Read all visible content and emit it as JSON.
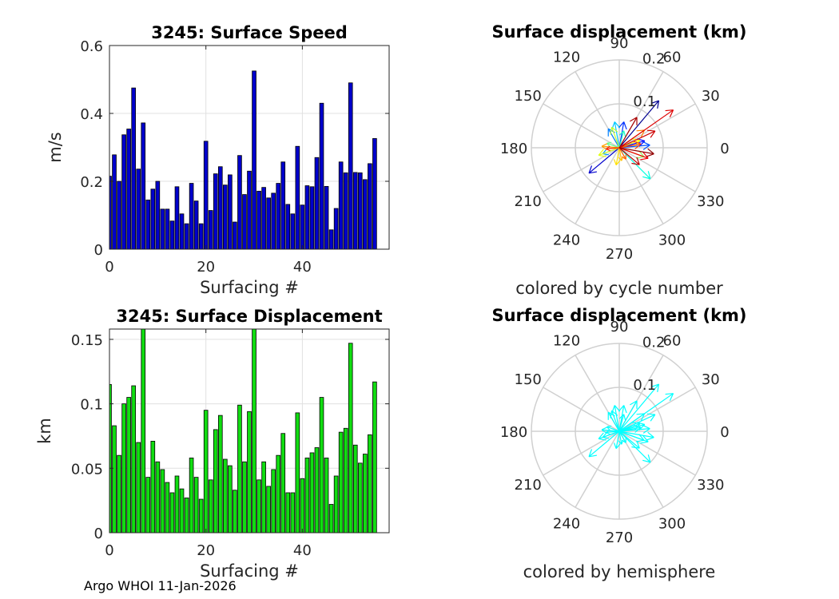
{
  "footer": "Argo WHOI 11-Jan-2026",
  "chart_data": [
    {
      "type": "bar",
      "title": "3245: Surface Speed",
      "xlabel": "Surfacing #",
      "ylabel": "m/s",
      "color": "#0000cc",
      "xlim": [
        0,
        58
      ],
      "ylim": [
        0,
        0.6
      ],
      "xticks": [
        0,
        20,
        40
      ],
      "yticks": [
        0,
        0.2,
        0.4,
        0.6
      ],
      "yticklabels": [
        "0",
        "0.2",
        "0.4",
        "0.6"
      ],
      "grid": true,
      "x": [
        0,
        1,
        2,
        3,
        4,
        5,
        6,
        7,
        8,
        9,
        10,
        11,
        12,
        13,
        14,
        15,
        16,
        17,
        18,
        19,
        20,
        21,
        22,
        23,
        24,
        25,
        26,
        27,
        28,
        29,
        30,
        31,
        32,
        33,
        34,
        35,
        36,
        37,
        38,
        39,
        40,
        41,
        42,
        43,
        44,
        45,
        46,
        47,
        48,
        49,
        50,
        51,
        52,
        53,
        54,
        55,
        56
      ],
      "values": [
        0.215,
        0.278,
        0.2,
        0.337,
        0.354,
        0.475,
        0.236,
        0.372,
        0.145,
        0.177,
        0.2,
        0.118,
        0.118,
        0.083,
        0.184,
        0.104,
        0.075,
        0.194,
        0.142,
        0.075,
        0.318,
        0.114,
        0.222,
        0.243,
        0.189,
        0.219,
        0.08,
        0.276,
        0.161,
        0.23,
        0.525,
        0.171,
        0.182,
        0.151,
        0.165,
        0.194,
        0.257,
        0.132,
        0.104,
        0.303,
        0.13,
        0.187,
        0.184,
        0.27,
        0.43,
        0.185,
        0.057,
        0.12,
        0.257,
        0.225,
        0.49,
        0.226,
        0.225,
        0.205,
        0.252,
        0.326,
        0.0
      ]
    },
    {
      "type": "bar",
      "title": "3245: Surface Displacement",
      "xlabel": "Surfacing #",
      "ylabel": "km",
      "color": "#11dd11",
      "xlim": [
        0,
        58
      ],
      "ylim": [
        0,
        0.158
      ],
      "xticks": [
        0,
        20,
        40
      ],
      "yticks": [
        0,
        0.05,
        0.1,
        0.15
      ],
      "yticklabels": [
        "0",
        "0.05",
        "0.1",
        "0.15"
      ],
      "grid": true,
      "x": [
        0,
        1,
        2,
        3,
        4,
        5,
        6,
        7,
        8,
        9,
        10,
        11,
        12,
        13,
        14,
        15,
        16,
        17,
        18,
        19,
        20,
        21,
        22,
        23,
        24,
        25,
        26,
        27,
        28,
        29,
        30,
        31,
        32,
        33,
        34,
        35,
        36,
        37,
        38,
        39,
        40,
        41,
        42,
        43,
        44,
        45,
        46,
        47,
        48,
        49,
        50,
        51,
        52,
        53,
        54,
        55,
        56
      ],
      "values": [
        0.115,
        0.083,
        0.06,
        0.1,
        0.105,
        0.114,
        0.07,
        0.158,
        0.043,
        0.071,
        0.055,
        0.049,
        0.039,
        0.031,
        0.044,
        0.034,
        0.027,
        0.058,
        0.043,
        0.026,
        0.095,
        0.041,
        0.08,
        0.091,
        0.057,
        0.052,
        0.033,
        0.099,
        0.055,
        0.094,
        0.158,
        0.041,
        0.055,
        0.036,
        0.049,
        0.06,
        0.077,
        0.031,
        0.031,
        0.093,
        0.042,
        0.058,
        0.062,
        0.066,
        0.105,
        0.058,
        0.022,
        0.044,
        0.078,
        0.081,
        0.147,
        0.068,
        0.054,
        0.061,
        0.076,
        0.117,
        0.0
      ]
    },
    {
      "type": "polar",
      "title": "Surface displacement (km)",
      "caption": "colored by cycle number",
      "angle_labels": [
        "0",
        "30",
        "60",
        "90",
        "120",
        "150",
        "180",
        "210",
        "240",
        "270",
        "300",
        "330"
      ],
      "radial_ticks": [
        0.1,
        0.2
      ],
      "radial_labels": [
        "0.1",
        "0.2"
      ],
      "rmax": 0.2,
      "arrows": [
        {
          "angle": 50,
          "r": 0.14,
          "color": "#000090"
        },
        {
          "angle": 15,
          "r": 0.06,
          "color": "#0000ff"
        },
        {
          "angle": 220,
          "r": 0.09,
          "color": "#0000cc"
        },
        {
          "angle": 80,
          "r": 0.06,
          "color": "#0030ff"
        },
        {
          "angle": 5,
          "r": 0.07,
          "color": "#0050ff"
        },
        {
          "angle": 120,
          "r": 0.05,
          "color": "#0080ff"
        },
        {
          "angle": 200,
          "r": 0.04,
          "color": "#00a0ff"
        },
        {
          "angle": 100,
          "r": 0.06,
          "color": "#00c8ff"
        },
        {
          "angle": 315,
          "r": 0.1,
          "color": "#00ffe0"
        },
        {
          "angle": 75,
          "r": 0.04,
          "color": "#20ffc0"
        },
        {
          "angle": 160,
          "r": 0.03,
          "color": "#60ff90"
        },
        {
          "angle": 340,
          "r": 0.06,
          "color": "#90ff60"
        },
        {
          "angle": 110,
          "r": 0.05,
          "color": "#c0ff30"
        },
        {
          "angle": 200,
          "r": 0.05,
          "color": "#e0ff10"
        },
        {
          "angle": 20,
          "r": 0.05,
          "color": "#ffff00"
        },
        {
          "angle": 260,
          "r": 0.04,
          "color": "#ffe000"
        },
        {
          "angle": 280,
          "r": 0.03,
          "color": "#ffc000"
        },
        {
          "angle": 175,
          "r": 0.04,
          "color": "#ffa000"
        },
        {
          "angle": 35,
          "r": 0.07,
          "color": "#ff8000"
        },
        {
          "angle": 300,
          "r": 0.03,
          "color": "#ff6000"
        },
        {
          "angle": 10,
          "r": 0.05,
          "color": "#ff4000"
        },
        {
          "angle": 185,
          "r": 0.03,
          "color": "#ff2000"
        },
        {
          "angle": 340,
          "r": 0.07,
          "color": "#ee0000"
        },
        {
          "angle": 35,
          "r": 0.15,
          "color": "#dd0000"
        },
        {
          "angle": 25,
          "r": 0.09,
          "color": "#cc0000"
        },
        {
          "angle": 320,
          "r": 0.06,
          "color": "#bb0000"
        },
        {
          "angle": 60,
          "r": 0.08,
          "color": "#aa0000"
        },
        {
          "angle": 350,
          "r": 0.08,
          "color": "#900000"
        }
      ]
    },
    {
      "type": "polar",
      "title": "Surface displacement (km)",
      "caption": "colored by hemisphere",
      "angle_labels": [
        "0",
        "30",
        "60",
        "90",
        "120",
        "150",
        "180",
        "210",
        "240",
        "270",
        "300",
        "330"
      ],
      "radial_ticks": [
        0.1,
        0.2
      ],
      "radial_labels": [
        "0.1",
        "0.2"
      ],
      "rmax": 0.2,
      "color": "#00ffff",
      "arrows": [
        {
          "angle": 50,
          "r": 0.14
        },
        {
          "angle": 15,
          "r": 0.06
        },
        {
          "angle": 220,
          "r": 0.09
        },
        {
          "angle": 80,
          "r": 0.06
        },
        {
          "angle": 5,
          "r": 0.07
        },
        {
          "angle": 120,
          "r": 0.05
        },
        {
          "angle": 200,
          "r": 0.04
        },
        {
          "angle": 100,
          "r": 0.06
        },
        {
          "angle": 315,
          "r": 0.1
        },
        {
          "angle": 75,
          "r": 0.04
        },
        {
          "angle": 160,
          "r": 0.03
        },
        {
          "angle": 340,
          "r": 0.06
        },
        {
          "angle": 110,
          "r": 0.05
        },
        {
          "angle": 200,
          "r": 0.05
        },
        {
          "angle": 20,
          "r": 0.05
        },
        {
          "angle": 260,
          "r": 0.04
        },
        {
          "angle": 280,
          "r": 0.03
        },
        {
          "angle": 175,
          "r": 0.04
        },
        {
          "angle": 35,
          "r": 0.07
        },
        {
          "angle": 300,
          "r": 0.03
        },
        {
          "angle": 10,
          "r": 0.05
        },
        {
          "angle": 185,
          "r": 0.03
        },
        {
          "angle": 340,
          "r": 0.07
        },
        {
          "angle": 35,
          "r": 0.15
        },
        {
          "angle": 25,
          "r": 0.09
        },
        {
          "angle": 320,
          "r": 0.06
        },
        {
          "angle": 60,
          "r": 0.08
        },
        {
          "angle": 350,
          "r": 0.08
        }
      ]
    }
  ]
}
